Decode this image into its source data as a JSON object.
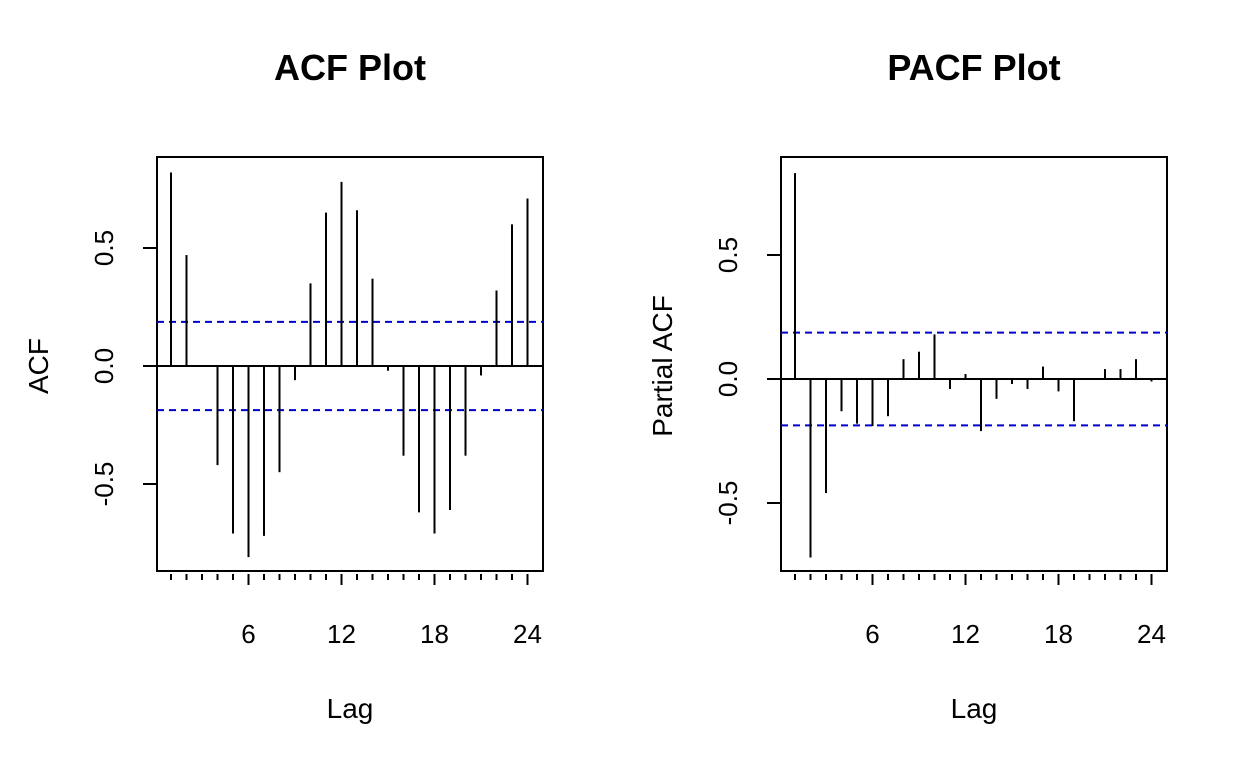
{
  "colors": {
    "axis": "#000000",
    "bar": "#000000",
    "ci_line": "#0000cc",
    "background": "#ffffff"
  },
  "chart_data": [
    {
      "type": "bar",
      "title": "ACF Plot",
      "xlabel": "Lag",
      "ylabel": "ACF",
      "xlim": [
        0,
        24.5
      ],
      "ylim": [
        -0.8,
        0.9
      ],
      "x_ticks": [
        6,
        12,
        18,
        24
      ],
      "y_ticks": [
        -0.5,
        0.0,
        0.5
      ],
      "y_tick_labels": [
        "-0.5",
        "0.0",
        "0.5"
      ],
      "ci": [
        0.187,
        -0.187
      ],
      "grid": false,
      "series": [
        {
          "x": [
            1,
            2,
            3,
            4,
            5,
            6,
            7,
            8,
            9,
            10,
            11,
            12,
            13,
            14,
            15,
            16,
            17,
            18,
            19,
            20,
            21,
            22,
            23,
            24
          ],
          "values": [
            0.82,
            0.47,
            0.0,
            -0.42,
            -0.71,
            -0.81,
            -0.72,
            -0.45,
            -0.06,
            0.35,
            0.65,
            0.78,
            0.66,
            0.37,
            -0.02,
            -0.38,
            -0.62,
            -0.71,
            -0.61,
            -0.38,
            -0.04,
            0.32,
            0.6,
            0.71
          ]
        }
      ]
    },
    {
      "type": "bar",
      "title": "PACF Plot",
      "xlabel": "Lag",
      "ylabel": "Partial ACF",
      "xlim": [
        1,
        24.5
      ],
      "ylim": [
        -0.8,
        0.9
      ],
      "x_ticks": [
        6,
        12,
        18,
        24
      ],
      "y_ticks": [
        -0.5,
        0.0,
        0.5
      ],
      "y_tick_labels": [
        "-0.5",
        "0.0",
        "0.5"
      ],
      "ci": [
        0.187,
        -0.187
      ],
      "grid": false,
      "series": [
        {
          "x": [
            1,
            2,
            3,
            4,
            5,
            6,
            7,
            8,
            9,
            10,
            11,
            12,
            13,
            14,
            15,
            16,
            17,
            18,
            19,
            20,
            21,
            22,
            23,
            24
          ],
          "values": [
            0.83,
            -0.72,
            -0.46,
            -0.13,
            -0.18,
            -0.19,
            -0.15,
            0.08,
            0.11,
            0.18,
            -0.04,
            0.02,
            -0.21,
            -0.08,
            -0.02,
            -0.04,
            0.05,
            -0.05,
            -0.17,
            0.0,
            0.04,
            0.04,
            0.08,
            -0.01
          ]
        }
      ]
    }
  ]
}
